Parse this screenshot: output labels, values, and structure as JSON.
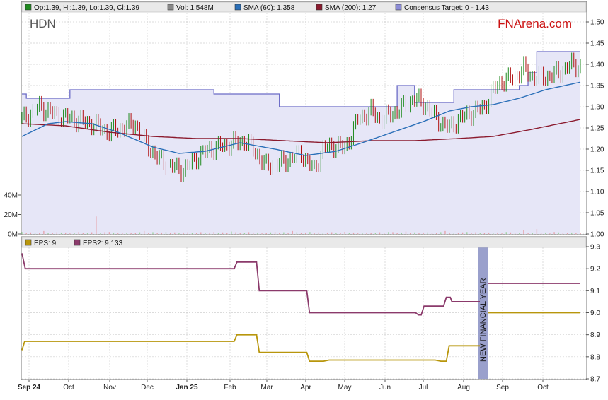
{
  "chart_data": [
    {
      "type": "candlestick",
      "ticker": "HDN",
      "brand": "FNArena.com",
      "legend": {
        "ohlc": "Op:1.39, Hi:1.39, Lo:1.39, Cl:1.39",
        "vol": "Vol: 1.548M",
        "sma60": "SMA (60): 1.358",
        "sma200": "SMA (200): 1.27",
        "consensus": "Consensus Target: 0 - 1.43"
      },
      "colors": {
        "up": "#1e8a1e",
        "down": "#b01010",
        "sma60": "#2a6fb8",
        "sma200": "#8b1a2e",
        "consensus_line": "#6b6bc6",
        "consensus_fill": "#e6e6f7"
      },
      "ylim": [
        1.0,
        1.5
      ],
      "yticks": [
        "1.50",
        "1.45",
        "1.40",
        "1.35",
        "1.30",
        "1.25",
        "1.20",
        "1.15",
        "1.10",
        "1.05",
        "1.00"
      ],
      "volume_ticks": [
        "40M",
        "20M",
        "0M"
      ],
      "months": [
        "Sep 24",
        "Oct",
        "Nov",
        "Dec",
        "Jan 25",
        "Feb",
        "Mar",
        "Apr",
        "May",
        "Jun",
        "Jul",
        "Aug",
        "Sep",
        "Oct"
      ],
      "month_bold": [
        "Sep 24",
        "Jan 25"
      ],
      "close_keypoints": [
        [
          0,
          1.27
        ],
        [
          4,
          1.3
        ],
        [
          8,
          1.28
        ],
        [
          12,
          1.27
        ],
        [
          16,
          1.26
        ],
        [
          20,
          1.24
        ],
        [
          23,
          1.25
        ],
        [
          26,
          1.26
        ],
        [
          28,
          1.22
        ],
        [
          31,
          1.18
        ],
        [
          34,
          1.16
        ],
        [
          37,
          1.15
        ],
        [
          40,
          1.18
        ],
        [
          43,
          1.2
        ],
        [
          47,
          1.21
        ],
        [
          51,
          1.22
        ],
        [
          53,
          1.2
        ],
        [
          56,
          1.16
        ],
        [
          60,
          1.17
        ],
        [
          64,
          1.19
        ],
        [
          67,
          1.15
        ],
        [
          69,
          1.2
        ],
        [
          72,
          1.21
        ],
        [
          74,
          1.2
        ],
        [
          77,
          1.27
        ],
        [
          80,
          1.29
        ],
        [
          82,
          1.27
        ],
        [
          86,
          1.29
        ],
        [
          90,
          1.32
        ],
        [
          93,
          1.3
        ],
        [
          95,
          1.27
        ],
        [
          98,
          1.25
        ],
        [
          100,
          1.27
        ],
        [
          102,
          1.28
        ],
        [
          106,
          1.3
        ],
        [
          108,
          1.34
        ],
        [
          110,
          1.36
        ],
        [
          113,
          1.37
        ],
        [
          115,
          1.39
        ],
        [
          117,
          1.37
        ],
        [
          120,
          1.37
        ],
        [
          123,
          1.38
        ],
        [
          126,
          1.4
        ],
        [
          128,
          1.395
        ]
      ],
      "sma60_keypoints": [
        [
          0,
          1.23
        ],
        [
          6,
          1.26
        ],
        [
          10,
          1.265
        ],
        [
          16,
          1.26
        ],
        [
          22,
          1.24
        ],
        [
          30,
          1.205
        ],
        [
          36,
          1.19
        ],
        [
          42,
          1.195
        ],
        [
          50,
          1.215
        ],
        [
          58,
          1.2
        ],
        [
          65,
          1.185
        ],
        [
          72,
          1.195
        ],
        [
          78,
          1.215
        ],
        [
          85,
          1.24
        ],
        [
          92,
          1.265
        ],
        [
          98,
          1.29
        ],
        [
          103,
          1.3
        ],
        [
          108,
          1.305
        ],
        [
          114,
          1.32
        ],
        [
          120,
          1.34
        ],
        [
          128,
          1.358
        ]
      ],
      "sma200_keypoints": [
        [
          0,
          1.26
        ],
        [
          10,
          1.255
        ],
        [
          20,
          1.24
        ],
        [
          30,
          1.23
        ],
        [
          40,
          1.225
        ],
        [
          50,
          1.225
        ],
        [
          60,
          1.22
        ],
        [
          70,
          1.215
        ],
        [
          80,
          1.22
        ],
        [
          90,
          1.22
        ],
        [
          100,
          1.225
        ],
        [
          108,
          1.23
        ],
        [
          116,
          1.245
        ],
        [
          128,
          1.27
        ]
      ],
      "consensus_steps": [
        [
          0,
          1.33
        ],
        [
          1,
          1.32
        ],
        [
          11,
          1.34
        ],
        [
          44,
          1.33
        ],
        [
          57,
          1.33
        ],
        [
          59,
          1.3
        ],
        [
          86,
          1.35
        ],
        [
          90,
          1.31
        ],
        [
          99,
          1.34
        ],
        [
          114,
          1.35
        ],
        [
          116,
          1.38
        ],
        [
          118,
          1.43
        ],
        [
          128,
          1.43
        ]
      ],
      "volume_bars_m": [
        [
          0,
          2
        ],
        [
          5,
          3
        ],
        [
          9,
          1.5
        ],
        [
          13,
          2
        ],
        [
          17,
          18
        ],
        [
          20,
          2
        ],
        [
          24,
          1.5
        ],
        [
          28,
          3
        ],
        [
          33,
          2
        ],
        [
          37,
          1.5
        ],
        [
          41,
          1.8
        ],
        [
          44,
          2
        ],
        [
          48,
          2.5
        ],
        [
          53,
          1.5
        ],
        [
          58,
          2
        ],
        [
          62,
          3
        ],
        [
          66,
          2
        ],
        [
          70,
          1.5
        ],
        [
          74,
          2.2
        ],
        [
          79,
          1.5
        ],
        [
          84,
          2
        ],
        [
          88,
          2.5
        ],
        [
          92,
          1.5
        ],
        [
          97,
          3
        ],
        [
          102,
          2
        ],
        [
          107,
          1.5
        ],
        [
          111,
          2
        ],
        [
          115,
          4
        ],
        [
          118,
          5
        ],
        [
          122,
          2
        ],
        [
          126,
          1.5
        ]
      ]
    },
    {
      "type": "line",
      "legend": {
        "eps": "EPS: 9",
        "eps2": "EPS2: 9.133"
      },
      "colors": {
        "eps": "#b8960c",
        "eps2": "#8b3a6b",
        "band": "#9aa0cc"
      },
      "ylim": [
        8.7,
        9.3
      ],
      "yticks": [
        "9.3",
        "9.2",
        "9.1",
        "9.0",
        "8.9",
        "8.8",
        "8.7"
      ],
      "annotation": "NEW FINANCIAL YEAR",
      "eps_series": [
        [
          0,
          8.83
        ],
        [
          0.5,
          8.87
        ],
        [
          38,
          8.87
        ],
        [
          38.5,
          8.9
        ],
        [
          42,
          8.9
        ],
        [
          42.5,
          8.82
        ],
        [
          51,
          8.82
        ],
        [
          51.5,
          8.78
        ],
        [
          52,
          8.78
        ],
        [
          54,
          8.78
        ],
        [
          55,
          8.785
        ],
        [
          74,
          8.785
        ],
        [
          75,
          8.78
        ],
        [
          76,
          8.78
        ],
        [
          76.5,
          8.85
        ],
        [
          82,
          8.85
        ]
      ],
      "eps_series_after": [
        [
          83.5,
          9.0
        ],
        [
          100,
          9.0
        ]
      ],
      "eps2_series": [
        [
          0,
          9.27
        ],
        [
          0.6,
          9.2
        ],
        [
          38,
          9.2
        ],
        [
          38.5,
          9.23
        ],
        [
          42,
          9.23
        ],
        [
          42.5,
          9.1
        ],
        [
          51,
          9.1
        ],
        [
          51.5,
          9.0
        ],
        [
          70.5,
          9.0
        ],
        [
          71,
          8.99
        ],
        [
          71.5,
          8.99
        ],
        [
          72,
          9.03
        ],
        [
          75.5,
          9.03
        ],
        [
          76,
          9.07
        ],
        [
          76.7,
          9.07
        ],
        [
          77,
          9.05
        ],
        [
          82,
          9.05
        ]
      ],
      "eps2_series_after": [
        [
          83.5,
          9.133
        ],
        [
          100,
          9.133
        ]
      ]
    }
  ]
}
